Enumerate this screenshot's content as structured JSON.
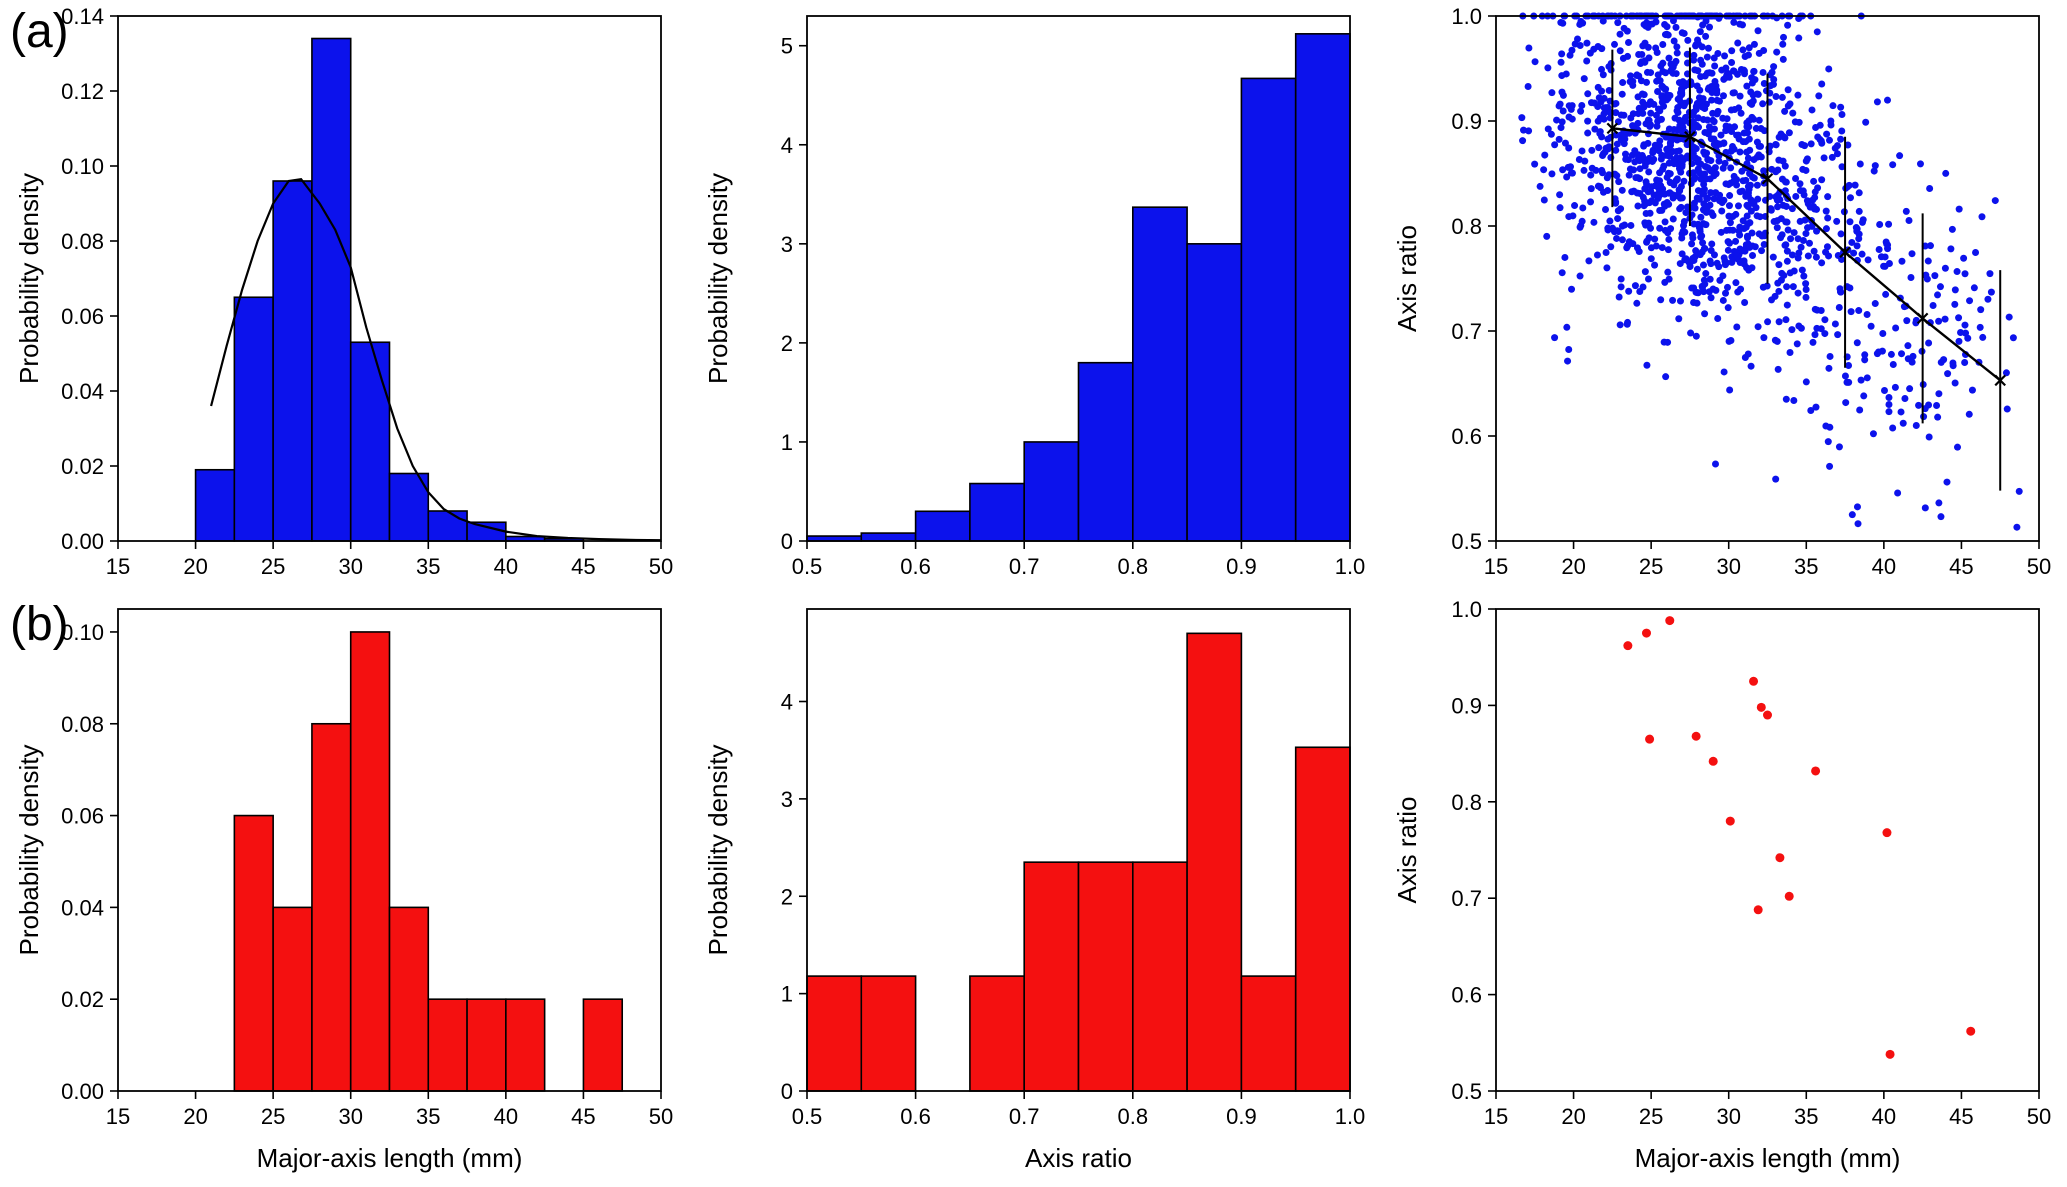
{
  "figure": {
    "background": "#ffffff",
    "panel_labels": [
      {
        "text": "(a)"
      },
      {
        "text": "(b)"
      }
    ]
  },
  "colors": {
    "blue": "#0c12ec",
    "red": "#f41010",
    "line": "#000000"
  },
  "chart_data": [
    {
      "id": "a1-major-axis-histogram",
      "type": "bar",
      "row": "a",
      "color_key": "blue",
      "xlim": [
        15,
        50
      ],
      "ylim": [
        0,
        0.14
      ],
      "xticks": [
        15,
        20,
        25,
        30,
        35,
        40,
        45,
        50
      ],
      "xtick_labels": [
        "15",
        "20",
        "25",
        "30",
        "35",
        "40",
        "45",
        "50"
      ],
      "yticks": [
        0,
        0.02,
        0.04,
        0.06,
        0.08,
        0.1,
        0.12,
        0.14
      ],
      "ytick_labels": [
        "0.00",
        "0.02",
        "0.04",
        "0.06",
        "0.08",
        "0.10",
        "0.12",
        "0.14"
      ],
      "xlabel": "",
      "ylabel": "Probability density",
      "bars": {
        "bin_start": 20,
        "bin_width": 2.5,
        "values": [
          0.019,
          0.065,
          0.096,
          0.134,
          0.053,
          0.018,
          0.008,
          0.005,
          0.0012,
          0.0006,
          0,
          0
        ]
      },
      "curve": [
        [
          21,
          0.036
        ],
        [
          22,
          0.052
        ],
        [
          23,
          0.067
        ],
        [
          24,
          0.08
        ],
        [
          25,
          0.09
        ],
        [
          26,
          0.096
        ],
        [
          26.8,
          0.0965
        ],
        [
          28,
          0.09
        ],
        [
          29,
          0.083
        ],
        [
          30,
          0.073
        ],
        [
          31,
          0.057
        ],
        [
          32,
          0.043
        ],
        [
          33,
          0.03
        ],
        [
          34,
          0.02
        ],
        [
          35,
          0.013
        ],
        [
          36,
          0.0085
        ],
        [
          37,
          0.006
        ],
        [
          38,
          0.0045
        ],
        [
          40,
          0.0025
        ],
        [
          42,
          0.0013
        ],
        [
          44,
          0.0008
        ],
        [
          46,
          0.0005
        ],
        [
          48,
          0.0003
        ],
        [
          50,
          0.0002
        ]
      ]
    },
    {
      "id": "a2-axis-ratio-histogram",
      "type": "bar",
      "row": "a",
      "color_key": "blue",
      "xlim": [
        0.5,
        1.0
      ],
      "ylim": [
        0,
        5.3
      ],
      "xticks": [
        0.5,
        0.6,
        0.7,
        0.8,
        0.9,
        1.0
      ],
      "xtick_labels": [
        "0.5",
        "0.6",
        "0.7",
        "0.8",
        "0.9",
        "1.0"
      ],
      "yticks": [
        0,
        1,
        2,
        3,
        4,
        5
      ],
      "ytick_labels": [
        "0",
        "1",
        "2",
        "3",
        "4",
        "5"
      ],
      "xlabel": "",
      "ylabel": "Probability density",
      "bars": {
        "bin_start": 0.5,
        "bin_width": 0.05,
        "values": [
          0.05,
          0.08,
          0.3,
          0.58,
          1.0,
          1.8,
          3.37,
          3.0,
          4.67,
          5.12
        ]
      }
    },
    {
      "id": "a3-axis-ratio-vs-length-scatter",
      "type": "scatter",
      "row": "a",
      "color_key": "blue",
      "xlim": [
        15,
        50
      ],
      "ylim": [
        0.5,
        1.0
      ],
      "xticks": [
        15,
        20,
        25,
        30,
        35,
        40,
        45,
        50
      ],
      "xtick_labels": [
        "15",
        "20",
        "25",
        "30",
        "35",
        "40",
        "45",
        "50"
      ],
      "yticks": [
        0.5,
        0.6,
        0.7,
        0.8,
        0.9,
        1.0
      ],
      "ytick_labels": [
        "0.5",
        "0.6",
        "0.7",
        "0.8",
        "0.9",
        "1.0"
      ],
      "xlabel": "",
      "ylabel": "Axis ratio",
      "scatter_generated": {
        "n": 1500,
        "seed": 42,
        "dot_radius": 3.5,
        "y_sd": 0.085,
        "x_bins": {
          "start": 16.5,
          "width": 2.5,
          "probs": [
            0.02,
            0.055,
            0.11,
            0.16,
            0.185,
            0.15,
            0.105,
            0.075,
            0.05,
            0.035,
            0.025,
            0.018,
            0.012
          ]
        }
      },
      "mean_line": {
        "x": [
          22.5,
          27.5,
          32.5,
          37.5,
          42.5,
          47.5
        ],
        "y": [
          0.893,
          0.885,
          0.845,
          0.775,
          0.712,
          0.653
        ],
        "yerr": [
          0.075,
          0.085,
          0.1,
          0.11,
          0.1,
          0.105
        ]
      }
    },
    {
      "id": "b1-major-axis-histogram",
      "type": "bar",
      "row": "b",
      "color_key": "red",
      "xlim": [
        15,
        50
      ],
      "ylim": [
        0,
        0.105
      ],
      "xticks": [
        15,
        20,
        25,
        30,
        35,
        40,
        45,
        50
      ],
      "xtick_labels": [
        "15",
        "20",
        "25",
        "30",
        "35",
        "40",
        "45",
        "50"
      ],
      "yticks": [
        0,
        0.02,
        0.04,
        0.06,
        0.08,
        0.1
      ],
      "ytick_labels": [
        "0.00",
        "0.02",
        "0.04",
        "0.06",
        "0.08",
        "0.10"
      ],
      "xlabel": "Major-axis length (mm)",
      "ylabel": "Probability density",
      "bars": {
        "bin_start": 22.5,
        "bin_width": 2.5,
        "values": [
          0.06,
          0.04,
          0.08,
          0.1,
          0.04,
          0.02,
          0.02,
          0.02,
          0,
          0.02
        ]
      }
    },
    {
      "id": "b2-axis-ratio-histogram",
      "type": "bar",
      "row": "b",
      "color_key": "red",
      "xlim": [
        0.5,
        1.0
      ],
      "ylim": [
        0,
        4.95
      ],
      "xticks": [
        0.5,
        0.6,
        0.7,
        0.8,
        0.9,
        1.0
      ],
      "xtick_labels": [
        "0.5",
        "0.6",
        "0.7",
        "0.8",
        "0.9",
        "1.0"
      ],
      "yticks": [
        0,
        1,
        2,
        3,
        4
      ],
      "ytick_labels": [
        "0",
        "1",
        "2",
        "3",
        "4"
      ],
      "xlabel": "Axis ratio",
      "ylabel": "Probability density",
      "bars": {
        "bin_start": 0.5,
        "bin_width": 0.05,
        "values": [
          1.18,
          1.18,
          0,
          1.18,
          2.35,
          2.35,
          2.35,
          4.7,
          1.18,
          3.53
        ]
      }
    },
    {
      "id": "b3-axis-ratio-vs-length-scatter",
      "type": "scatter",
      "row": "b",
      "color_key": "red",
      "xlim": [
        15,
        50
      ],
      "ylim": [
        0.5,
        1.0
      ],
      "xticks": [
        15,
        20,
        25,
        30,
        35,
        40,
        45,
        50
      ],
      "xtick_labels": [
        "15",
        "20",
        "25",
        "30",
        "35",
        "40",
        "45",
        "50"
      ],
      "yticks": [
        0.5,
        0.6,
        0.7,
        0.8,
        0.9,
        1.0
      ],
      "ytick_labels": [
        "0.5",
        "0.6",
        "0.7",
        "0.8",
        "0.9",
        "1.0"
      ],
      "xlabel": "Major-axis length (mm)",
      "ylabel": "Axis ratio",
      "dot_radius": 4.5,
      "points": [
        [
          23.5,
          0.962
        ],
        [
          24.7,
          0.975
        ],
        [
          26.2,
          0.988
        ],
        [
          24.9,
          0.865
        ],
        [
          27.9,
          0.868
        ],
        [
          29.0,
          0.842
        ],
        [
          30.1,
          0.78
        ],
        [
          31.6,
          0.925
        ],
        [
          32.1,
          0.898
        ],
        [
          32.5,
          0.89
        ],
        [
          31.9,
          0.688
        ],
        [
          33.3,
          0.742
        ],
        [
          33.9,
          0.702
        ],
        [
          35.6,
          0.832
        ],
        [
          40.2,
          0.768
        ],
        [
          40.4,
          0.538
        ],
        [
          45.6,
          0.562
        ]
      ]
    }
  ]
}
